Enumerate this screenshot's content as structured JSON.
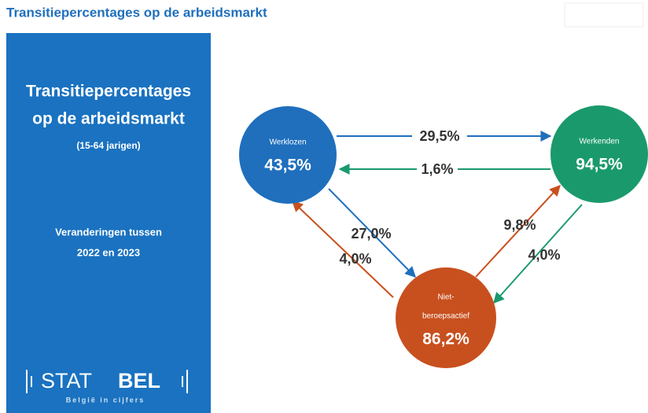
{
  "header": {
    "title": "Transitiepercentages op de arbeidsmarkt"
  },
  "panel": {
    "title": [
      "Transitiepercentages",
      "op de arbeidsmarkt"
    ],
    "subtitle": "(15-64 jarigen)",
    "note": [
      "Veranderingen tussen",
      "2022 en 2023"
    ],
    "logo": {
      "parts": [
        "STAT",
        "BEL"
      ],
      "tagline": "België in cijfers"
    }
  },
  "nodes": [
    {
      "label": [
        "Werklozen"
      ],
      "value": "43,5%"
    },
    {
      "label": [
        "Werkenden"
      ],
      "value": "94,5%"
    },
    {
      "label": [
        "Niet-",
        "beroepsactief"
      ],
      "value": "86,2%"
    }
  ],
  "edges": [
    {
      "label": "29,5%"
    },
    {
      "label": "1,6%"
    },
    {
      "label": "27,0%"
    },
    {
      "label": "4,0%"
    },
    {
      "label": "9,8%"
    },
    {
      "label": "4,0%"
    }
  ]
}
